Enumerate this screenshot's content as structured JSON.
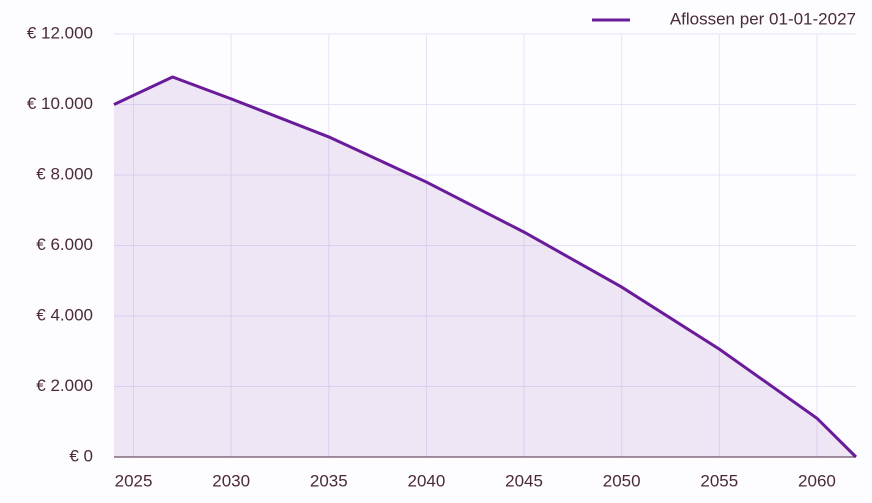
{
  "chart_data": {
    "type": "area",
    "series": [
      {
        "name": "Aflossen per 01-01-2027",
        "color": "#6a1b9a",
        "x": [
          2024,
          2027,
          2030,
          2035,
          2040,
          2045,
          2050,
          2055,
          2060,
          2062
        ],
        "values": [
          10000,
          10780,
          10160,
          9080,
          7800,
          6380,
          4820,
          3060,
          1100,
          0
        ]
      }
    ],
    "xlim": [
      2024,
      2062
    ],
    "xticks": [
      2025,
      2030,
      2035,
      2040,
      2045,
      2050,
      2055,
      2060
    ],
    "ylim": [
      0,
      12000
    ],
    "yticks": [
      {
        "value": 0,
        "label": "€ 0"
      },
      {
        "value": 2000,
        "label": "€ 2.000"
      },
      {
        "value": 4000,
        "label": "€ 4.000"
      },
      {
        "value": 6000,
        "label": "€ 6.000"
      },
      {
        "value": 8000,
        "label": "€ 8.000"
      },
      {
        "value": 10000,
        "label": "€ 10.000"
      },
      {
        "value": 12000,
        "label": "€ 12.000"
      }
    ],
    "grid": true,
    "legend": "top-right"
  }
}
